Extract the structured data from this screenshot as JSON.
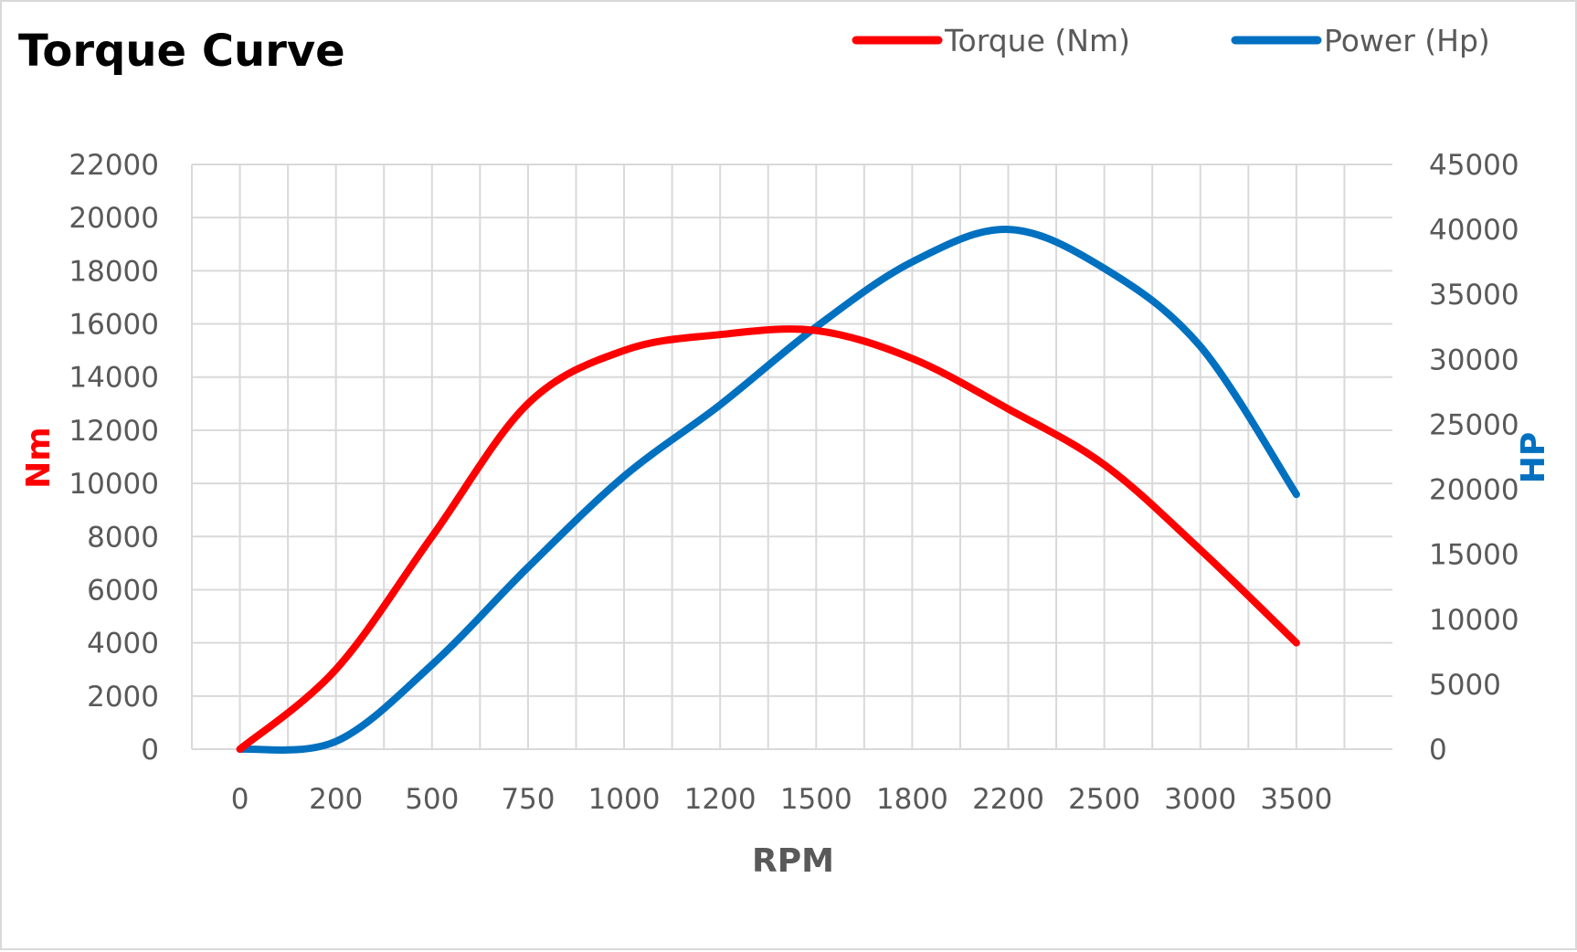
{
  "chart_data": {
    "type": "line",
    "title": "Torque Curve",
    "xlabel": "RPM",
    "ylabel_left": "Nm",
    "ylabel_right": "HP",
    "categories": [
      "0",
      "200",
      "500",
      "750",
      "1000",
      "1200",
      "1500",
      "1800",
      "2200",
      "2500",
      "3000",
      "3500"
    ],
    "y_left_ticks": [
      "0",
      "2000",
      "4000",
      "6000",
      "8000",
      "10000",
      "12000",
      "14000",
      "16000",
      "18000",
      "20000",
      "22000"
    ],
    "y_right_ticks": [
      "0",
      "5000",
      "10000",
      "15000",
      "20000",
      "25000",
      "30000",
      "35000",
      "40000",
      "45000"
    ],
    "ylim_left": [
      0,
      22000
    ],
    "ylim_right": [
      0,
      45000
    ],
    "grid": true,
    "legend_position": "top-right",
    "series": [
      {
        "name": "Torque (Nm)",
        "axis": "left",
        "color": "#ff0000",
        "values": [
          0,
          3000,
          8000,
          13000,
          15000,
          15600,
          15750,
          14700,
          12800,
          10700,
          7500,
          4000
        ]
      },
      {
        "name": "Power (Hp)",
        "axis": "right",
        "color": "#0070c0",
        "values": [
          0,
          600,
          6500,
          14000,
          21000,
          26500,
          32500,
          37500,
          40000,
          37000,
          31000,
          19600
        ]
      }
    ]
  }
}
